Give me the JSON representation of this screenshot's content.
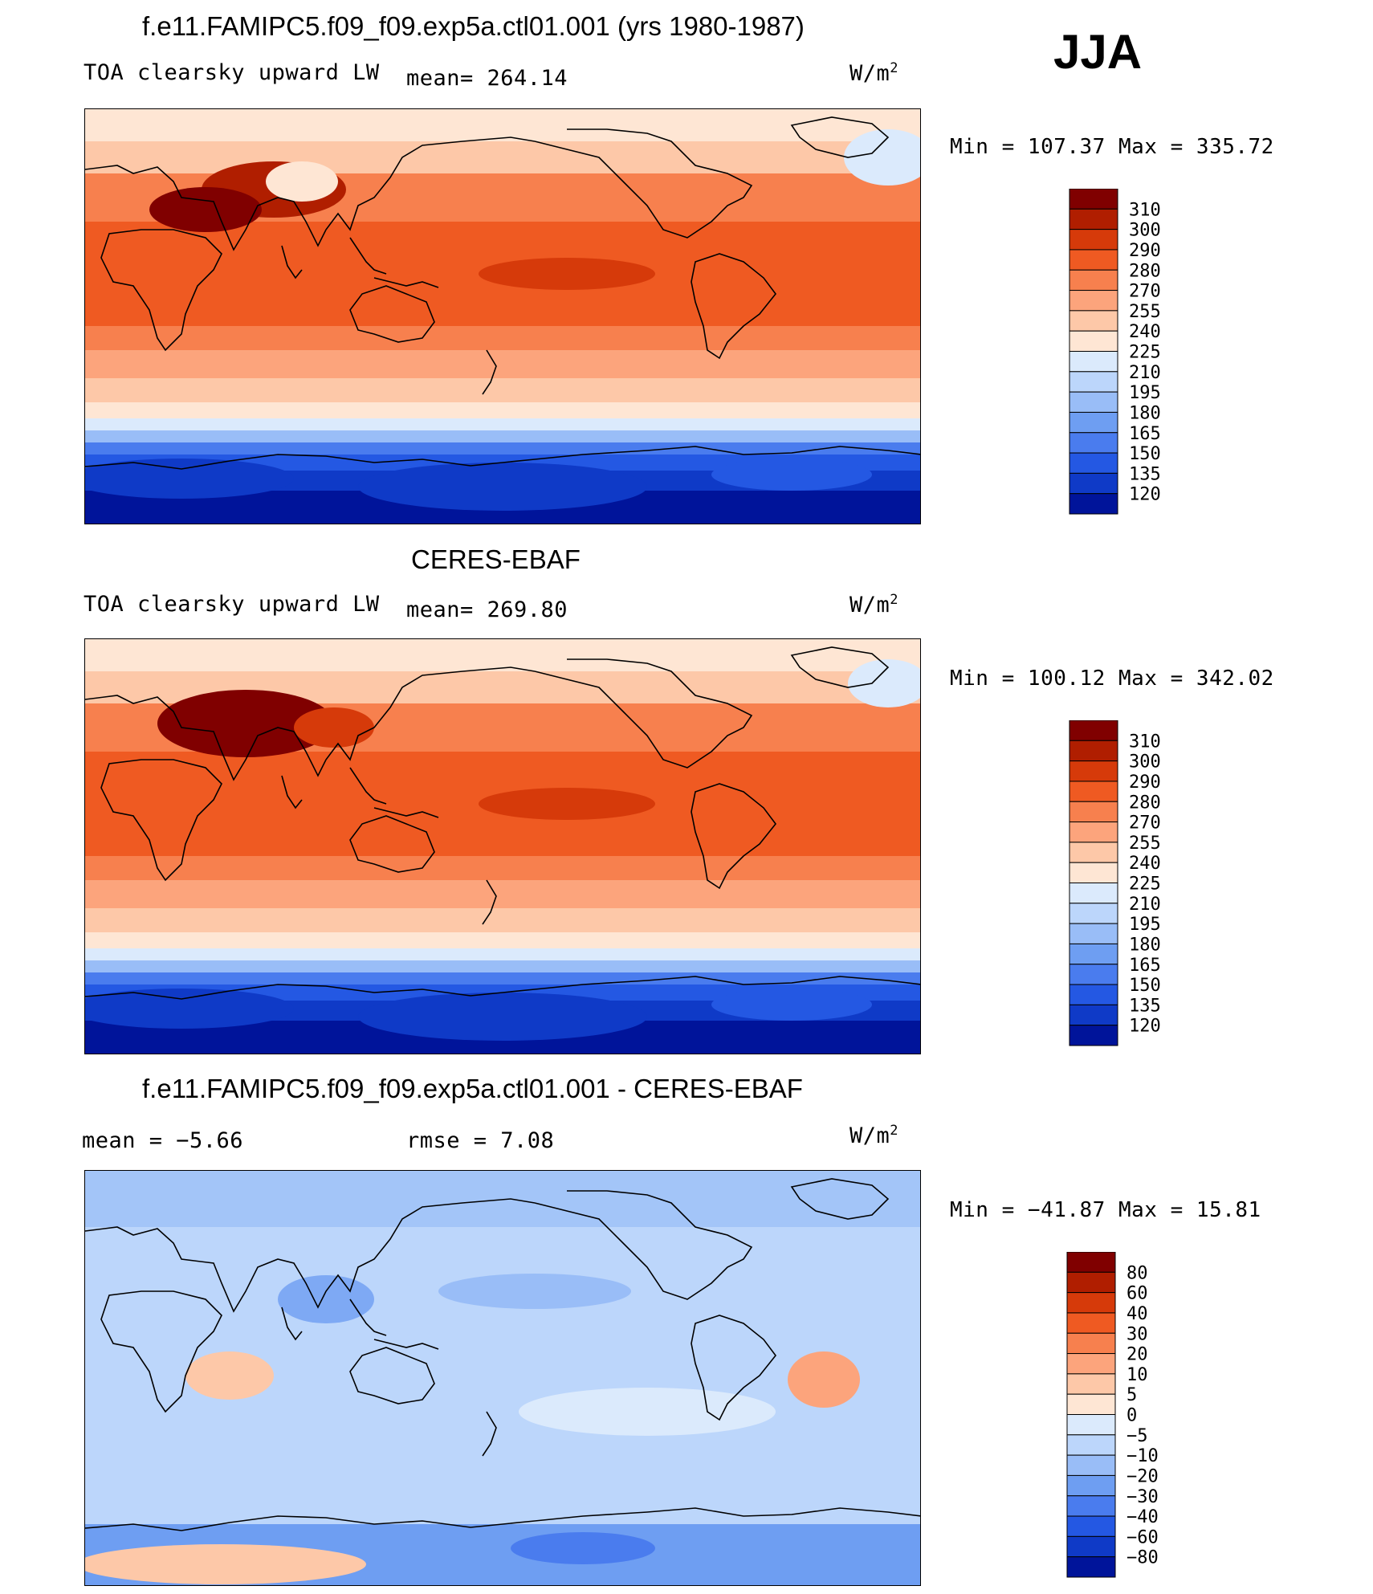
{
  "season": "JJA",
  "panels": [
    {
      "id": "model",
      "title": "f.e11.FAMIPC5.f09_f09.exp5a.ctl01.001 (yrs 1980-1987)",
      "variable": "TOA clearsky upward LW",
      "stat_text": "mean=  264.14",
      "units": "W/m",
      "units_sup": "2",
      "minmax": "Min  =  107.37  Max  =  335.72",
      "colorbar_labels": [
        "310",
        "300",
        "290",
        "280",
        "270",
        "255",
        "240",
        "225",
        "210",
        "195",
        "180",
        "165",
        "150",
        "135",
        "120"
      ],
      "colorbar_colors": [
        "#800000",
        "#b01e00",
        "#d63a0a",
        "#ef5a22",
        "#f7804e",
        "#fca47c",
        "#fdc8a8",
        "#fee6d4",
        "#dbeafc",
        "#bcd6fb",
        "#99bdf7",
        "#6e9ef2",
        "#4a7cee",
        "#2458e3",
        "#0f3ac7",
        "#00149a"
      ]
    },
    {
      "id": "obs",
      "title": "CERES-EBAF",
      "variable": "TOA clearsky upward LW",
      "stat_text": "mean=  269.80",
      "units": "W/m",
      "units_sup": "2",
      "minmax": "Min  =  100.12  Max  =  342.02",
      "colorbar_labels": [
        "310",
        "300",
        "290",
        "280",
        "270",
        "255",
        "240",
        "225",
        "210",
        "195",
        "180",
        "165",
        "150",
        "135",
        "120"
      ],
      "colorbar_colors": [
        "#800000",
        "#b01e00",
        "#d63a0a",
        "#ef5a22",
        "#f7804e",
        "#fca47c",
        "#fdc8a8",
        "#fee6d4",
        "#dbeafc",
        "#bcd6fb",
        "#99bdf7",
        "#6e9ef2",
        "#4a7cee",
        "#2458e3",
        "#0f3ac7",
        "#00149a"
      ]
    },
    {
      "id": "diff",
      "title": "f.e11.FAMIPC5.f09_f09.exp5a.ctl01.001 - CERES-EBAF",
      "mean_text": "mean  =    −5.66",
      "rmse_text": "rmse  =     7.08",
      "units": "W/m",
      "units_sup": "2",
      "minmax": "Min  =  −41.87  Max  =    15.81",
      "colorbar_labels": [
        "80",
        "60",
        "40",
        "30",
        "20",
        "10",
        "5",
        "0",
        "−5",
        "−10",
        "−20",
        "−30",
        "−40",
        "−60",
        "−80"
      ],
      "colorbar_colors": [
        "#800000",
        "#b01e00",
        "#d63a0a",
        "#ef5a22",
        "#f7804e",
        "#fca47c",
        "#fdc8a8",
        "#fee6d4",
        "#dbeafc",
        "#bcd6fb",
        "#99bdf7",
        "#6e9ef2",
        "#4a7cee",
        "#2458e3",
        "#0f3ac7",
        "#00149a"
      ]
    }
  ]
}
